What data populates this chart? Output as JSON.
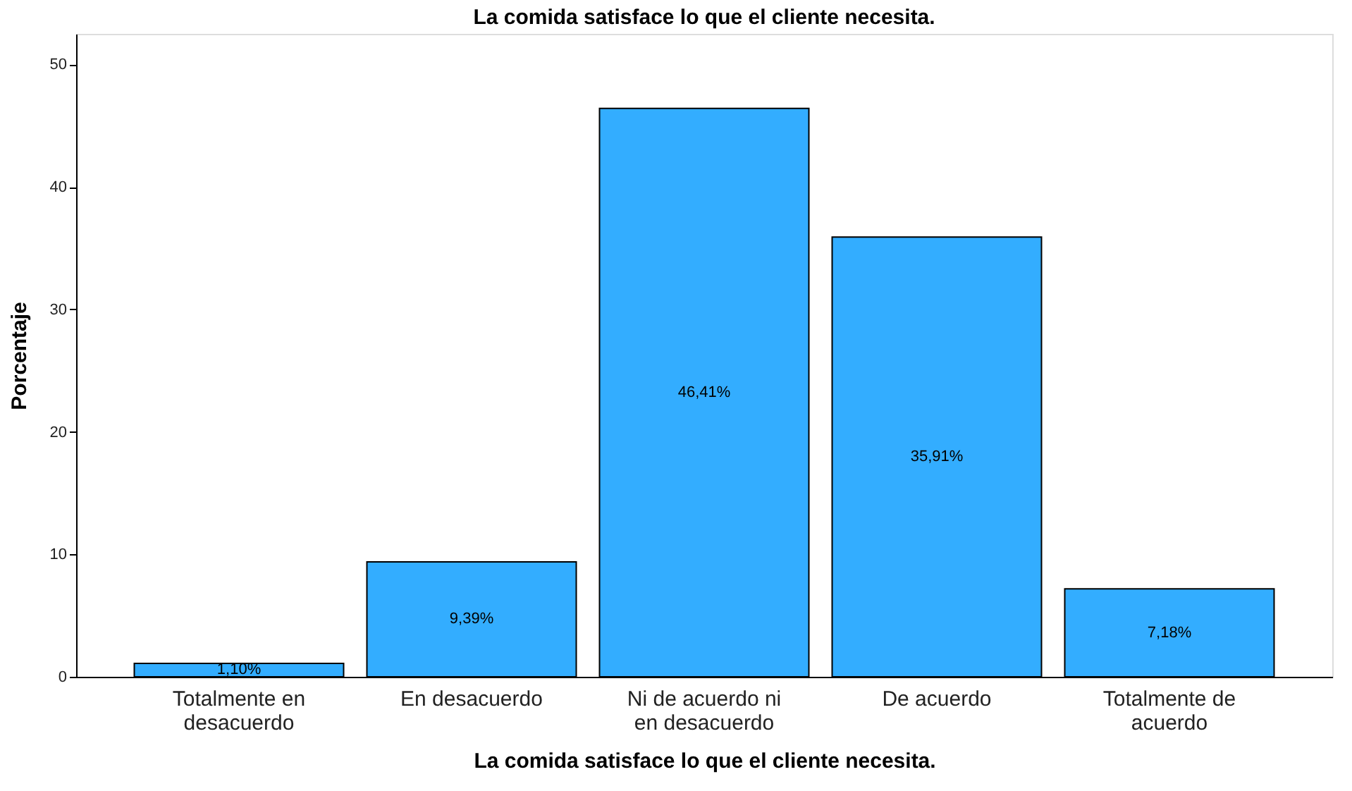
{
  "chart_data": {
    "type": "bar",
    "title": "La comida satisface lo que el cliente necesita.",
    "xlabel": "La comida satisface lo que el cliente necesita.",
    "ylabel": "Porcentaje",
    "categories": [
      "Totalmente en\ndesacuerdo",
      "En desacuerdo",
      "Ni de acuerdo ni\nen desacuerdo",
      "De acuerdo",
      "Totalmente de\nacuerdo"
    ],
    "values": [
      1.1,
      9.39,
      46.41,
      35.91,
      7.18
    ],
    "value_labels": [
      "1,10%",
      "9,39%",
      "46,41%",
      "35,91%",
      "7,18%"
    ],
    "color": "#33adff",
    "ylim": [
      0,
      52.5
    ],
    "yticks": [
      0,
      10,
      20,
      30,
      40,
      50
    ],
    "grid": false
  }
}
